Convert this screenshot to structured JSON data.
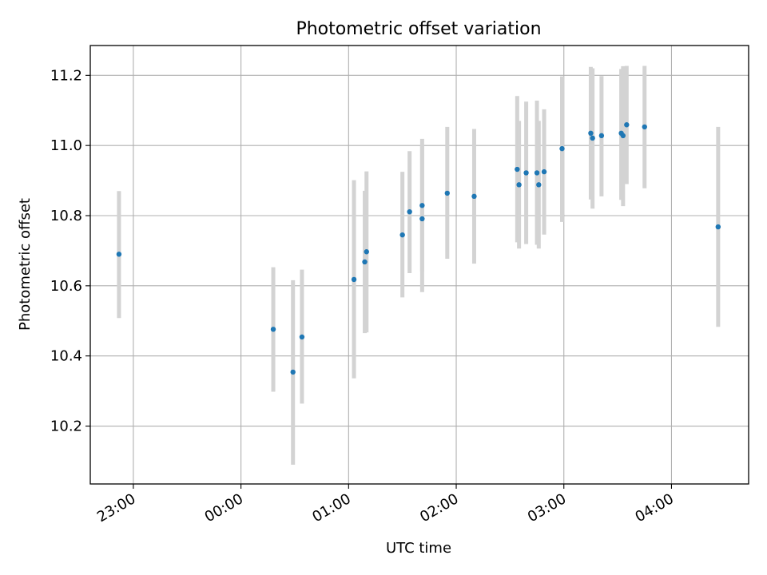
{
  "chart_data": {
    "type": "scatter",
    "title": "Photometric offset variation",
    "xlabel": "UTC time",
    "ylabel": "Photometric offset",
    "xlim": [
      "22:36",
      "04:43"
    ],
    "ylim": [
      10.035,
      11.285
    ],
    "grid": true,
    "x_tick_labels": [
      "23:00",
      "00:00",
      "01:00",
      "02:00",
      "03:00",
      "04:00"
    ],
    "x_ticks": [
      "23:00",
      "24:00",
      "25:00",
      "26:00",
      "27:00",
      "28:00"
    ],
    "y_tick_labels": [
      "10.2",
      "10.4",
      "10.6",
      "10.8",
      "11.0",
      "11.2"
    ],
    "y_ticks": [
      10.2,
      10.4,
      10.6,
      10.8,
      11.0,
      11.2
    ],
    "points": [
      {
        "t": "22:52",
        "y": 10.69,
        "lo": 10.508,
        "hi": 10.87
      },
      {
        "t": "00:18",
        "y": 10.476,
        "lo": 10.298,
        "hi": 10.653
      },
      {
        "t": "00:29",
        "y": 10.354,
        "lo": 10.09,
        "hi": 10.616
      },
      {
        "t": "00:34",
        "y": 10.454,
        "lo": 10.264,
        "hi": 10.646
      },
      {
        "t": "01:03",
        "y": 10.618,
        "lo": 10.336,
        "hi": 10.901
      },
      {
        "t": "01:09",
        "y": 10.668,
        "lo": 10.465,
        "hi": 10.871
      },
      {
        "t": "01:10",
        "y": 10.697,
        "lo": 10.467,
        "hi": 10.926
      },
      {
        "t": "01:30",
        "y": 10.745,
        "lo": 10.567,
        "hi": 10.925
      },
      {
        "t": "01:34",
        "y": 10.811,
        "lo": 10.636,
        "hi": 10.984
      },
      {
        "t": "01:41",
        "y": 10.791,
        "lo": 10.582,
        "hi": 10.999
      },
      {
        "t": "01:41",
        "y": 10.829,
        "lo": 10.64,
        "hi": 11.019
      },
      {
        "t": "01:55",
        "y": 10.864,
        "lo": 10.677,
        "hi": 11.053
      },
      {
        "t": "02:10",
        "y": 10.855,
        "lo": 10.663,
        "hi": 11.047
      },
      {
        "t": "02:34",
        "y": 10.932,
        "lo": 10.724,
        "hi": 11.141
      },
      {
        "t": "02:35",
        "y": 10.888,
        "lo": 10.706,
        "hi": 11.07
      },
      {
        "t": "02:39",
        "y": 10.922,
        "lo": 10.719,
        "hi": 11.125
      },
      {
        "t": "02:45",
        "y": 10.922,
        "lo": 10.717,
        "hi": 11.128
      },
      {
        "t": "02:46",
        "y": 10.888,
        "lo": 10.706,
        "hi": 11.07
      },
      {
        "t": "02:49",
        "y": 10.925,
        "lo": 10.746,
        "hi": 11.103
      },
      {
        "t": "02:59",
        "y": 10.991,
        "lo": 10.782,
        "hi": 11.197
      },
      {
        "t": "03:15",
        "y": 11.035,
        "lo": 10.846,
        "hi": 11.224
      },
      {
        "t": "03:16",
        "y": 11.021,
        "lo": 10.82,
        "hi": 11.22
      },
      {
        "t": "03:21",
        "y": 11.028,
        "lo": 10.855,
        "hi": 11.198
      },
      {
        "t": "03:32",
        "y": 11.035,
        "lo": 10.845,
        "hi": 11.218
      },
      {
        "t": "03:33",
        "y": 11.028,
        "lo": 10.827,
        "hi": 11.226
      },
      {
        "t": "03:35",
        "y": 11.059,
        "lo": 10.89,
        "hi": 11.227
      },
      {
        "t": "03:45",
        "y": 11.053,
        "lo": 10.878,
        "hi": 11.227
      },
      {
        "t": "04:26",
        "y": 10.768,
        "lo": 10.483,
        "hi": 11.053
      }
    ],
    "colors": {
      "point": "#1f77b4",
      "errorbar": "#d3d3d3",
      "grid": "#b0b0b0",
      "axes": "#000000"
    }
  }
}
